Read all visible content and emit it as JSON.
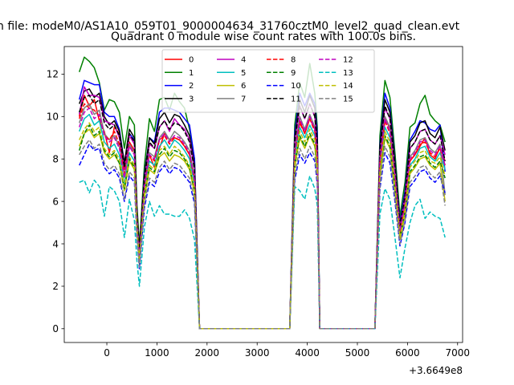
{
  "suptitle": "n file: modeM0/AS1A10_059T01_9000004634_31760cztM0_level2_quad_clean.evt",
  "chart_data": {
    "type": "line",
    "title": "Quadrant 0 module wise count rates with 100.0s bins.",
    "xlabel": "",
    "ylabel": "",
    "x_offset_label": "+3.6649e8",
    "xlim": [
      -850,
      7100
    ],
    "ylim": [
      -0.65,
      13.3
    ],
    "x_ticks": [
      0,
      1000,
      2000,
      3000,
      4000,
      5000,
      6000,
      7000
    ],
    "x_tick_labels": [
      "0",
      "1000",
      "2000",
      "3000",
      "4000",
      "5000",
      "6000",
      "7000"
    ],
    "y_ticks": [
      0,
      2,
      4,
      6,
      8,
      10,
      12
    ],
    "y_tick_labels": [
      "0",
      "2",
      "4",
      "6",
      "8",
      "10",
      "12"
    ],
    "grid": false,
    "legend": {
      "location": "upper-center",
      "columns": 4
    },
    "x": [
      -550,
      -450,
      -350,
      -250,
      -150,
      -50,
      50,
      150,
      250,
      350,
      450,
      550,
      600,
      650,
      750,
      850,
      950,
      1050,
      1150,
      1250,
      1350,
      1450,
      1550,
      1650,
      1750,
      1850,
      3650,
      3750,
      3850,
      3950,
      4050,
      4150,
      4200,
      4250,
      5350,
      5450,
      5550,
      5650,
      5750,
      5850,
      5950,
      6050,
      6150,
      6250,
      6350,
      6450,
      6550,
      6650,
      6750
    ],
    "series": [
      {
        "name": "0",
        "color": "#ff0000",
        "dash": "solid",
        "values": [
          10.0,
          11.0,
          10.5,
          10.8,
          9.8,
          9.3,
          8.3,
          9.5,
          9.2,
          7.6,
          8.8,
          8.4,
          5.2,
          3.4,
          6.9,
          8.2,
          7.6,
          8.5,
          9.2,
          8.9,
          9.0,
          8.9,
          8.6,
          8.2,
          7.0,
          0.0,
          0.0,
          8.4,
          9.8,
          9.2,
          9.9,
          9.4,
          8.2,
          0.0,
          0.0,
          7.6,
          10.0,
          9.4,
          7.1,
          4.6,
          5.9,
          7.9,
          8.2,
          8.6,
          9.0,
          8.2,
          8.0,
          8.6,
          7.9
        ]
      },
      {
        "name": "1",
        "color": "#008000",
        "dash": "solid",
        "values": [
          12.1,
          12.8,
          12.6,
          12.3,
          11.6,
          10.3,
          10.8,
          10.7,
          10.2,
          8.5,
          10.0,
          9.6,
          5.9,
          3.9,
          7.7,
          9.9,
          9.3,
          10.8,
          10.9,
          10.3,
          11.1,
          10.7,
          10.4,
          9.4,
          8.0,
          0.0,
          0.0,
          9.6,
          11.6,
          10.9,
          12.5,
          11.1,
          9.5,
          0.0,
          0.0,
          9.1,
          11.7,
          10.9,
          8.3,
          5.3,
          6.9,
          9.5,
          9.7,
          10.6,
          11.0,
          10.1,
          9.8,
          9.6,
          8.8
        ]
      },
      {
        "name": "2",
        "color": "#0000ff",
        "dash": "solid",
        "values": [
          10.8,
          11.7,
          11.6,
          11.5,
          11.5,
          10.2,
          10.0,
          10.0,
          9.4,
          7.8,
          9.2,
          8.9,
          5.5,
          3.6,
          7.3,
          9.0,
          8.8,
          10.2,
          10.4,
          10.4,
          10.3,
          10.2,
          9.9,
          9.6,
          8.0,
          0.0,
          0.0,
          9.2,
          11.1,
          10.5,
          11.1,
          10.6,
          9.2,
          0.0,
          0.0,
          8.7,
          11.1,
          10.4,
          7.9,
          5.0,
          6.5,
          8.9,
          9.3,
          9.8,
          9.7,
          9.4,
          9.3,
          9.6,
          7.4
        ]
      },
      {
        "name": "3",
        "color": "#000000",
        "dash": "solid",
        "values": [
          10.6,
          11.2,
          11.3,
          10.9,
          11.1,
          10.0,
          9.6,
          9.8,
          9.3,
          7.8,
          9.4,
          9.0,
          5.5,
          3.7,
          7.2,
          9.0,
          8.7,
          9.9,
          10.2,
          9.7,
          10.1,
          10.0,
          9.6,
          9.1,
          7.7,
          0.0,
          0.0,
          9.0,
          10.8,
          10.2,
          11.0,
          10.4,
          8.9,
          0.0,
          0.0,
          8.6,
          10.8,
          10.2,
          7.8,
          4.9,
          6.3,
          8.8,
          9.1,
          9.7,
          9.8,
          9.2,
          9.0,
          9.5,
          8.4
        ]
      },
      {
        "name": "4",
        "color": "#bf00bf",
        "dash": "solid",
        "values": [
          10.1,
          11.4,
          11.0,
          11.0,
          10.9,
          9.8,
          9.7,
          9.6,
          9.0,
          7.5,
          9.1,
          8.7,
          5.3,
          3.5,
          7.0,
          8.7,
          8.5,
          9.5,
          9.8,
          9.3,
          9.9,
          9.6,
          9.4,
          8.9,
          7.5,
          0.0,
          0.0,
          8.8,
          10.5,
          9.9,
          10.6,
          10.0,
          8.6,
          0.0,
          0.0,
          8.3,
          10.4,
          9.9,
          7.5,
          4.8,
          6.2,
          8.5,
          8.8,
          9.3,
          9.4,
          8.9,
          8.7,
          9.1,
          8.2
        ]
      },
      {
        "name": "5",
        "color": "#00bfbf",
        "dash": "solid",
        "values": [
          9.3,
          9.9,
          10.1,
          9.6,
          9.8,
          8.8,
          8.5,
          8.7,
          8.2,
          6.8,
          8.3,
          7.9,
          4.9,
          3.2,
          6.5,
          7.9,
          7.7,
          8.6,
          8.9,
          8.5,
          8.9,
          8.7,
          8.4,
          8.0,
          6.8,
          0.0,
          0.0,
          8.0,
          9.5,
          9.0,
          9.6,
          9.1,
          7.8,
          0.0,
          0.0,
          7.6,
          9.5,
          9.0,
          6.9,
          4.4,
          5.6,
          7.7,
          8.0,
          8.5,
          8.6,
          8.1,
          7.9,
          8.3,
          7.5
        ]
      },
      {
        "name": "6",
        "color": "#bfbf00",
        "dash": "solid",
        "values": [
          8.6,
          9.2,
          9.4,
          9.0,
          9.2,
          8.3,
          8.0,
          8.2,
          7.8,
          6.5,
          7.9,
          7.5,
          4.6,
          3.0,
          6.2,
          7.5,
          7.3,
          8.1,
          8.3,
          7.9,
          8.2,
          8.1,
          7.9,
          7.5,
          6.4,
          0.0,
          0.0,
          7.6,
          9.0,
          8.5,
          9.1,
          8.6,
          7.4,
          0.0,
          0.0,
          7.2,
          9.0,
          8.5,
          6.5,
          4.2,
          5.4,
          7.3,
          7.6,
          8.0,
          8.1,
          7.7,
          7.5,
          7.8,
          6.0
        ]
      },
      {
        "name": "7",
        "color": "#808080",
        "dash": "solid",
        "values": [
          9.7,
          10.4,
          10.6,
          10.1,
          10.3,
          9.2,
          8.9,
          9.1,
          8.6,
          7.2,
          8.7,
          8.3,
          5.1,
          3.4,
          6.8,
          8.3,
          8.1,
          9.0,
          9.3,
          8.9,
          9.3,
          9.1,
          8.8,
          8.4,
          7.1,
          0.0,
          0.0,
          8.4,
          10.0,
          9.4,
          10.1,
          9.5,
          8.2,
          0.0,
          0.0,
          8.0,
          10.0,
          9.5,
          7.3,
          4.6,
          5.9,
          8.1,
          8.4,
          8.9,
          9.0,
          8.5,
          8.3,
          8.7,
          6.3
        ]
      },
      {
        "name": "8",
        "color": "#ff0000",
        "dash": "dashed",
        "values": [
          9.9,
          10.6,
          10.4,
          10.3,
          10.0,
          9.1,
          8.9,
          9.3,
          8.7,
          7.3,
          8.6,
          8.2,
          5.0,
          3.3,
          6.7,
          8.2,
          7.9,
          8.9,
          9.1,
          8.7,
          9.0,
          8.9,
          8.6,
          8.2,
          7.0,
          0.0,
          0.0,
          8.3,
          9.7,
          9.2,
          9.9,
          9.3,
          8.0,
          0.0,
          0.0,
          7.8,
          9.8,
          9.2,
          7.1,
          4.5,
          5.8,
          7.9,
          8.2,
          8.7,
          8.8,
          8.3,
          8.1,
          8.5,
          7.7
        ]
      },
      {
        "name": "9",
        "color": "#008000",
        "dash": "dashed",
        "values": [
          8.4,
          9.2,
          9.6,
          9.1,
          9.3,
          8.4,
          8.1,
          8.3,
          7.8,
          6.6,
          8.0,
          7.6,
          4.7,
          3.1,
          6.3,
          7.6,
          7.4,
          8.2,
          8.5,
          8.1,
          8.4,
          8.3,
          8.0,
          7.6,
          6.5,
          0.0,
          0.0,
          7.7,
          9.1,
          8.6,
          9.2,
          8.7,
          7.5,
          0.0,
          0.0,
          7.3,
          9.1,
          8.6,
          6.6,
          4.3,
          5.5,
          7.4,
          7.7,
          8.1,
          8.2,
          7.8,
          7.6,
          7.9,
          7.1
        ]
      },
      {
        "name": "10",
        "color": "#0000ff",
        "dash": "dashed",
        "values": [
          7.7,
          8.2,
          8.7,
          8.4,
          8.5,
          7.6,
          7.3,
          7.5,
          7.1,
          6.0,
          7.2,
          6.9,
          4.3,
          2.8,
          5.7,
          6.9,
          6.7,
          7.4,
          7.7,
          7.3,
          7.6,
          7.5,
          7.2,
          6.9,
          5.9,
          0.0,
          0.0,
          7.0,
          8.2,
          7.8,
          8.3,
          7.9,
          6.8,
          0.0,
          0.0,
          6.6,
          8.3,
          7.8,
          6.0,
          3.9,
          5.0,
          6.7,
          7.0,
          7.4,
          7.5,
          7.1,
          6.9,
          7.2,
          6.4
        ]
      },
      {
        "name": "11",
        "color": "#000000",
        "dash": "dashed",
        "values": [
          10.2,
          10.9,
          11.0,
          10.6,
          10.8,
          9.7,
          9.4,
          9.6,
          9.1,
          7.6,
          9.2,
          8.8,
          5.4,
          3.6,
          7.1,
          8.8,
          8.5,
          9.5,
          9.8,
          9.4,
          9.7,
          9.6,
          9.3,
          8.8,
          7.5,
          0.0,
          0.0,
          8.8,
          10.5,
          9.9,
          10.6,
          10.0,
          8.6,
          0.0,
          0.0,
          8.4,
          10.5,
          9.9,
          7.6,
          4.8,
          6.2,
          8.5,
          8.8,
          9.3,
          9.4,
          8.9,
          8.7,
          9.1,
          7.9
        ]
      },
      {
        "name": "12",
        "color": "#bf00bf",
        "dash": "dashed",
        "values": [
          9.5,
          10.2,
          10.4,
          9.9,
          10.1,
          9.1,
          8.8,
          9.0,
          8.5,
          7.1,
          8.6,
          8.2,
          5.0,
          3.3,
          6.7,
          8.2,
          8.0,
          8.9,
          9.2,
          8.8,
          9.1,
          9.0,
          8.7,
          8.3,
          7.0,
          0.0,
          0.0,
          8.3,
          9.9,
          9.3,
          10.0,
          9.4,
          8.1,
          0.0,
          0.0,
          7.9,
          9.9,
          9.3,
          7.2,
          4.6,
          5.9,
          8.0,
          8.3,
          8.8,
          8.9,
          8.4,
          8.2,
          8.6,
          7.7
        ]
      },
      {
        "name": "13",
        "color": "#00bfbf",
        "dash": "dashed",
        "values": [
          6.9,
          7.0,
          6.4,
          7.0,
          6.7,
          5.3,
          6.7,
          6.5,
          6.0,
          4.3,
          6.1,
          5.1,
          3.2,
          2.0,
          4.8,
          6.0,
          5.3,
          5.8,
          5.4,
          5.4,
          5.3,
          5.3,
          5.6,
          5.2,
          4.2,
          0.0,
          0.0,
          6.7,
          6.5,
          6.1,
          7.2,
          6.6,
          5.8,
          0.0,
          0.0,
          5.4,
          6.6,
          6.1,
          4.3,
          2.4,
          3.8,
          5.0,
          5.8,
          6.1,
          5.2,
          5.5,
          5.3,
          5.2,
          4.3
        ]
      },
      {
        "name": "14",
        "color": "#bfbf00",
        "dash": "dashed",
        "values": [
          8.9,
          9.4,
          9.7,
          9.3,
          9.5,
          8.5,
          8.2,
          8.4,
          8.0,
          6.7,
          8.1,
          7.7,
          4.8,
          3.2,
          6.4,
          7.7,
          7.5,
          8.4,
          8.6,
          8.2,
          8.6,
          8.4,
          8.1,
          7.7,
          6.6,
          0.0,
          0.0,
          7.8,
          9.3,
          8.8,
          9.4,
          8.9,
          7.6,
          0.0,
          0.0,
          7.4,
          9.3,
          8.8,
          6.7,
          4.3,
          5.6,
          7.6,
          7.9,
          8.3,
          8.4,
          7.9,
          7.8,
          8.1,
          7.2
        ]
      },
      {
        "name": "15",
        "color": "#808080",
        "dash": "dashed",
        "values": [
          8.2,
          8.6,
          8.9,
          8.5,
          8.7,
          7.8,
          7.5,
          7.7,
          7.3,
          6.1,
          7.4,
          7.1,
          4.4,
          2.9,
          5.9,
          7.1,
          6.9,
          7.6,
          7.9,
          7.5,
          7.8,
          7.7,
          7.4,
          7.1,
          6.1,
          0.0,
          0.0,
          7.2,
          8.5,
          8.0,
          8.6,
          8.1,
          7.0,
          0.0,
          0.0,
          6.8,
          8.6,
          8.1,
          6.2,
          4.0,
          5.1,
          6.9,
          7.2,
          7.6,
          7.7,
          7.3,
          7.1,
          7.4,
          5.8
        ]
      }
    ]
  }
}
